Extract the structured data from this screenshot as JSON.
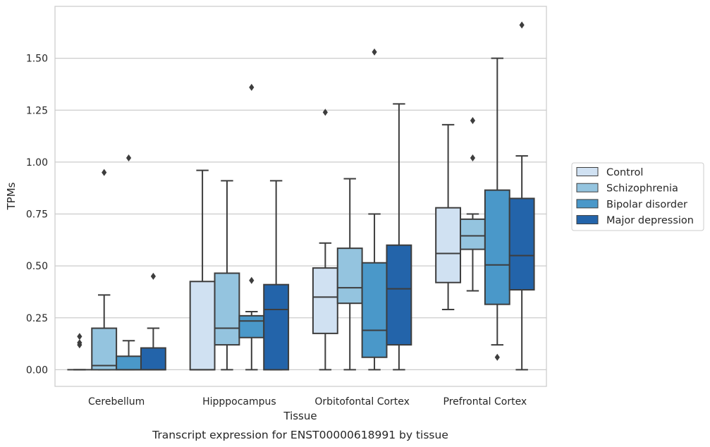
{
  "caption": "Transcript expression for ENST00000618991 by tissue",
  "chart_data": {
    "type": "box",
    "xlabel": "Tissue",
    "ylabel": "TPMs",
    "ylim": [
      -0.08,
      1.75
    ],
    "yticks": [
      0.0,
      0.25,
      0.5,
      0.75,
      1.0,
      1.25,
      1.5
    ],
    "ytick_labels": [
      "0.00",
      "0.25",
      "0.50",
      "0.75",
      "1.00",
      "1.25",
      "1.50"
    ],
    "grid": "horizontal",
    "legend_position": "right",
    "categories": [
      "Cerebellum",
      "Hipppocampus",
      "Orbitofontal Cortex",
      "Prefrontal Cortex"
    ],
    "series": [
      {
        "name": "Control",
        "color": "#d0e1f2",
        "boxes": [
          {
            "whislo": 0.0,
            "q1": 0.0,
            "med": 0.0,
            "q3": 0.0,
            "whishi": 0.0,
            "fliers": [
              0.16,
              0.13,
              0.12
            ]
          },
          {
            "whislo": 0.0,
            "q1": 0.0,
            "med": 0.0,
            "q3": 0.425,
            "whishi": 0.96,
            "fliers": []
          },
          {
            "whislo": 0.0,
            "q1": 0.175,
            "med": 0.35,
            "q3": 0.49,
            "whishi": 0.61,
            "fliers": [
              1.24
            ]
          },
          {
            "whislo": 0.29,
            "q1": 0.42,
            "med": 0.56,
            "q3": 0.78,
            "whishi": 1.18,
            "fliers": []
          }
        ]
      },
      {
        "name": "Schizophrenia",
        "color": "#94c4df",
        "boxes": [
          {
            "whislo": 0.0,
            "q1": 0.0,
            "med": 0.02,
            "q3": 0.2,
            "whishi": 0.36,
            "fliers": [
              0.95
            ]
          },
          {
            "whislo": 0.0,
            "q1": 0.12,
            "med": 0.2,
            "q3": 0.465,
            "whishi": 0.91,
            "fliers": []
          },
          {
            "whislo": 0.0,
            "q1": 0.32,
            "med": 0.395,
            "q3": 0.585,
            "whishi": 0.92,
            "fliers": []
          },
          {
            "whislo": 0.38,
            "q1": 0.58,
            "med": 0.645,
            "q3": 0.725,
            "whishi": 0.75,
            "fliers": [
              1.2,
              1.02
            ]
          }
        ]
      },
      {
        "name": "Bipolar disorder",
        "color": "#4a98c9",
        "boxes": [
          {
            "whislo": 0.0,
            "q1": 0.0,
            "med": 0.0,
            "q3": 0.065,
            "whishi": 0.14,
            "fliers": [
              1.02
            ]
          },
          {
            "whislo": 0.0,
            "q1": 0.155,
            "med": 0.235,
            "q3": 0.26,
            "whishi": 0.28,
            "fliers": [
              1.36,
              0.43
            ]
          },
          {
            "whislo": 0.0,
            "q1": 0.06,
            "med": 0.19,
            "q3": 0.515,
            "whishi": 0.75,
            "fliers": [
              1.53
            ]
          },
          {
            "whislo": 0.12,
            "q1": 0.315,
            "med": 0.505,
            "q3": 0.865,
            "whishi": 1.5,
            "fliers": [
              0.06
            ]
          }
        ]
      },
      {
        "name": "Major depression",
        "color": "#2364aa",
        "boxes": [
          {
            "whislo": 0.0,
            "q1": 0.0,
            "med": 0.0,
            "q3": 0.105,
            "whishi": 0.2,
            "fliers": [
              0.45
            ]
          },
          {
            "whislo": 0.0,
            "q1": 0.0,
            "med": 0.29,
            "q3": 0.41,
            "whishi": 0.91,
            "fliers": []
          },
          {
            "whislo": 0.0,
            "q1": 0.12,
            "med": 0.39,
            "q3": 0.6,
            "whishi": 1.28,
            "fliers": []
          },
          {
            "whislo": 0.0,
            "q1": 0.385,
            "med": 0.55,
            "q3": 0.825,
            "whishi": 1.03,
            "fliers": [
              1.66
            ]
          }
        ]
      }
    ]
  }
}
